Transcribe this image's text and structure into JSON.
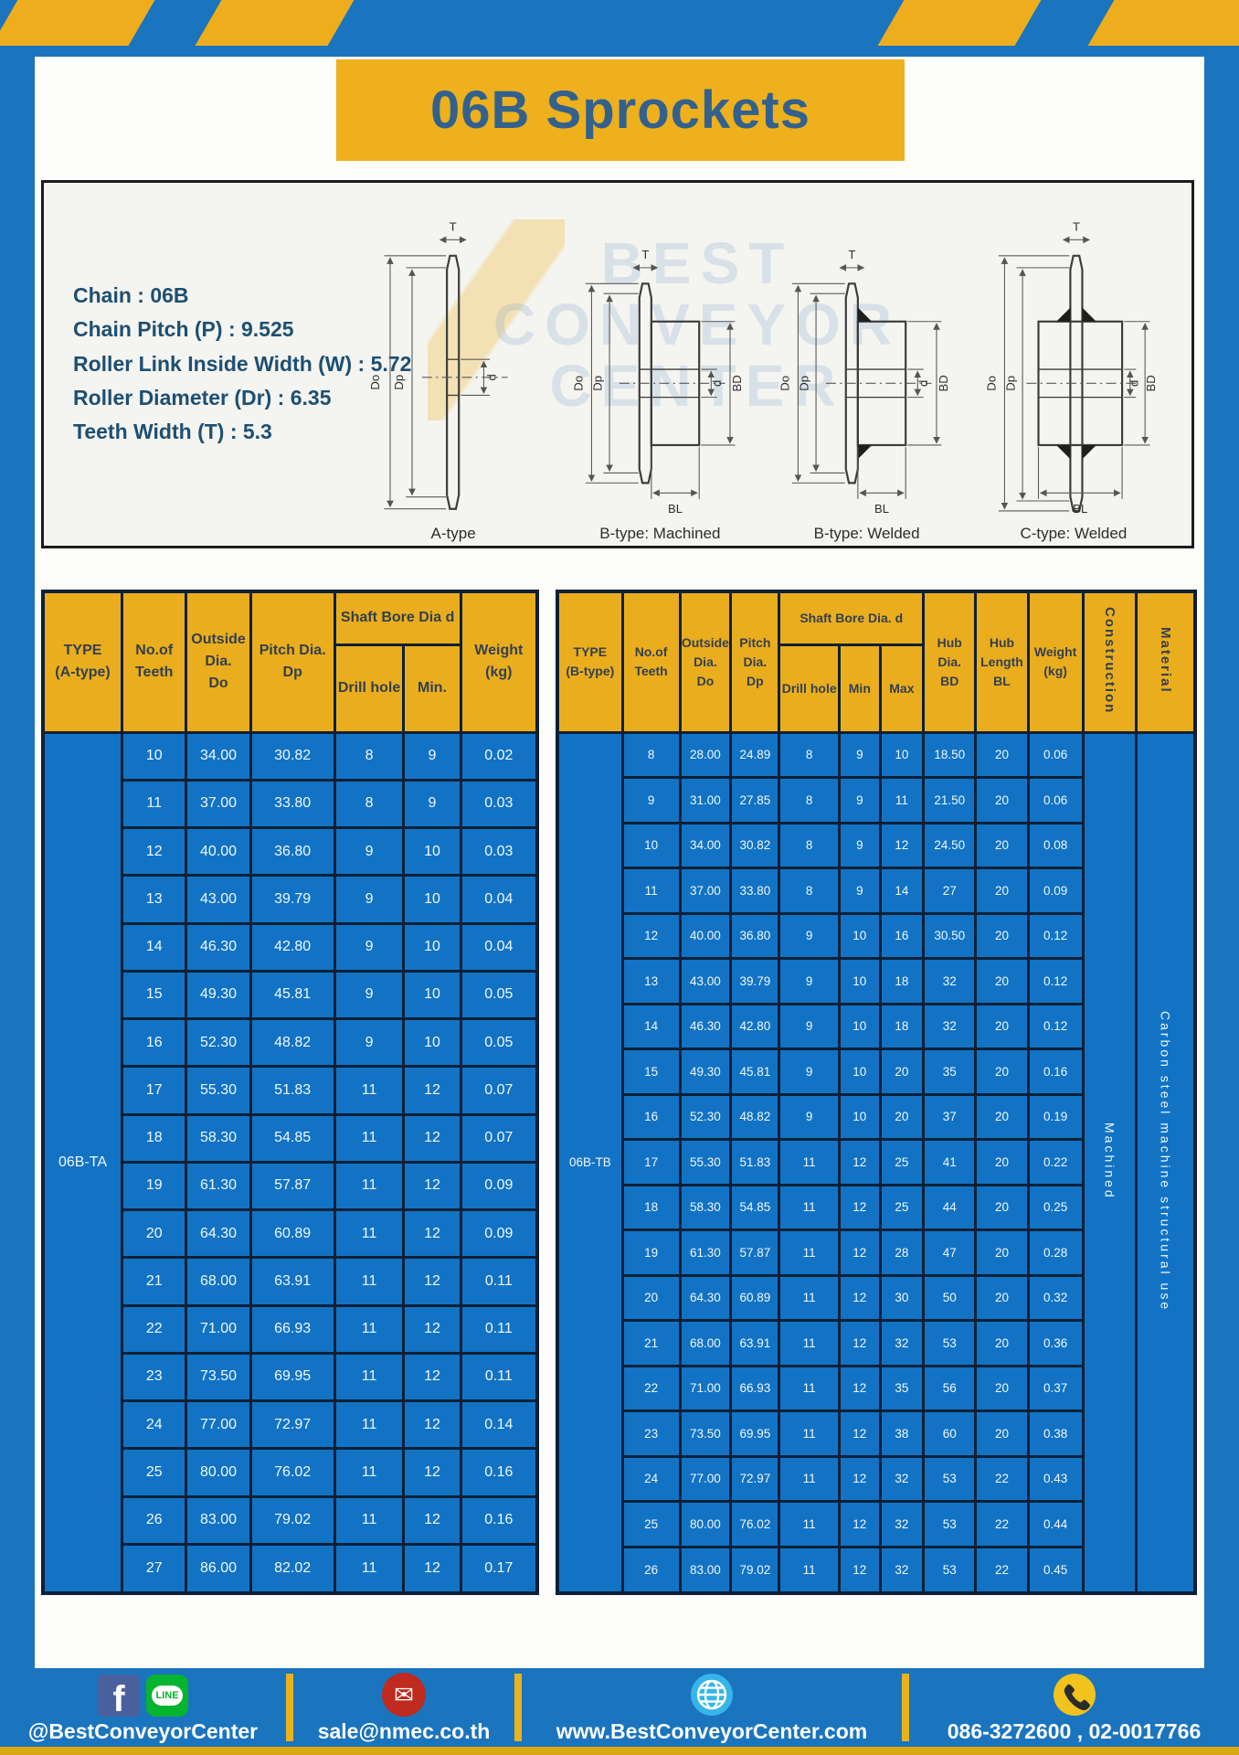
{
  "header": {
    "title": "06B Sprockets"
  },
  "specs": {
    "lines": [
      "Chain  : 06B",
      "Chain Pitch (P)  :  9.525",
      "Roller Link Inside Width (W)  :  5.72",
      "Roller Diameter (Dr)  : 6.35",
      "Teeth Width (T)  :  5.3"
    ]
  },
  "drawings": {
    "watermark": "BEST\nCONVEYOR\nCENTER",
    "dims": {
      "t": "T",
      "do": "Do",
      "dp": "Dp",
      "d": "d",
      "bd": "BD",
      "bl": "BL"
    },
    "figures": [
      {
        "label": "A-type"
      },
      {
        "label": "B-type: Machined"
      },
      {
        "label": "B-type: Welded"
      },
      {
        "label": "C-type: Welded"
      }
    ]
  },
  "table_a": {
    "type_label": "06B-TA",
    "headers": {
      "type": "TYPE\n(A-type)",
      "teeth": "No.of\nTeeth",
      "outside": "Outside\nDia.\nDo",
      "pitch": "Pitch Dia.\nDp",
      "bore_group": "Shaft Bore Dia d",
      "drill": "Drill hole",
      "min": "Min.",
      "weight": "Weight\n(kg)"
    },
    "rows": [
      [
        10,
        "34.00",
        "30.82",
        8,
        9,
        "0.02"
      ],
      [
        11,
        "37.00",
        "33.80",
        8,
        9,
        "0.03"
      ],
      [
        12,
        "40.00",
        "36.80",
        9,
        10,
        "0.03"
      ],
      [
        13,
        "43.00",
        "39.79",
        9,
        10,
        "0.04"
      ],
      [
        14,
        "46.30",
        "42.80",
        9,
        10,
        "0.04"
      ],
      [
        15,
        "49.30",
        "45.81",
        9,
        10,
        "0.05"
      ],
      [
        16,
        "52.30",
        "48.82",
        9,
        10,
        "0.05"
      ],
      [
        17,
        "55.30",
        "51.83",
        11,
        12,
        "0.07"
      ],
      [
        18,
        "58.30",
        "54.85",
        11,
        12,
        "0.07"
      ],
      [
        19,
        "61.30",
        "57.87",
        11,
        12,
        "0.09"
      ],
      [
        20,
        "64.30",
        "60.89",
        11,
        12,
        "0.09"
      ],
      [
        21,
        "68.00",
        "63.91",
        11,
        12,
        "0.11"
      ],
      [
        22,
        "71.00",
        "66.93",
        11,
        12,
        "0.11"
      ],
      [
        23,
        "73.50",
        "69.95",
        11,
        12,
        "0.11"
      ],
      [
        24,
        "77.00",
        "72.97",
        11,
        12,
        "0.14"
      ],
      [
        25,
        "80.00",
        "76.02",
        11,
        12,
        "0.16"
      ],
      [
        26,
        "83.00",
        "79.02",
        11,
        12,
        "0.16"
      ],
      [
        27,
        "86.00",
        "82.02",
        11,
        12,
        "0.17"
      ]
    ]
  },
  "table_b": {
    "type_label": "06B-TB",
    "construction_value": "Machined",
    "material_value": "Carbon steel machine structural use",
    "headers": {
      "type": "TYPE\n(B-type)",
      "teeth": "No.of\nTeeth",
      "outside": "Outside\nDia.\nDo",
      "pitch": "Pitch\nDia.\nDp",
      "bore_group": "Shaft Bore Dia. d",
      "drill": "Drill hole",
      "min": "Min",
      "max": "Max",
      "hub_dia": "Hub\nDia.\nBD",
      "hub_len": "Hub\nLength\nBL",
      "weight": "Weight\n(kg)",
      "construction": "Construction",
      "material": "Material"
    },
    "rows": [
      [
        8,
        "28.00",
        "24.89",
        8,
        9,
        10,
        "18.50",
        20,
        "0.06"
      ],
      [
        9,
        "31.00",
        "27.85",
        8,
        9,
        11,
        "21.50",
        20,
        "0.06"
      ],
      [
        10,
        "34.00",
        "30.82",
        8,
        9,
        12,
        "24.50",
        20,
        "0.08"
      ],
      [
        11,
        "37.00",
        "33.80",
        8,
        9,
        14,
        "27",
        20,
        "0.09"
      ],
      [
        12,
        "40.00",
        "36.80",
        9,
        10,
        16,
        "30.50",
        20,
        "0.12"
      ],
      [
        13,
        "43.00",
        "39.79",
        9,
        10,
        18,
        "32",
        20,
        "0.12"
      ],
      [
        14,
        "46.30",
        "42.80",
        9,
        10,
        18,
        "32",
        20,
        "0.12"
      ],
      [
        15,
        "49.30",
        "45.81",
        9,
        10,
        20,
        "35",
        20,
        "0.16"
      ],
      [
        16,
        "52.30",
        "48.82",
        9,
        10,
        20,
        "37",
        20,
        "0.19"
      ],
      [
        17,
        "55.30",
        "51.83",
        11,
        12,
        25,
        "41",
        20,
        "0.22"
      ],
      [
        18,
        "58.30",
        "54.85",
        11,
        12,
        25,
        "44",
        20,
        "0.25"
      ],
      [
        19,
        "61.30",
        "57.87",
        11,
        12,
        28,
        "47",
        20,
        "0.28"
      ],
      [
        20,
        "64.30",
        "60.89",
        11,
        12,
        30,
        "50",
        20,
        "0.32"
      ],
      [
        21,
        "68.00",
        "63.91",
        11,
        12,
        32,
        "53",
        20,
        "0.36"
      ],
      [
        22,
        "71.00",
        "66.93",
        11,
        12,
        35,
        "56",
        20,
        "0.37"
      ],
      [
        23,
        "73.50",
        "69.95",
        11,
        12,
        38,
        "60",
        20,
        "0.38"
      ],
      [
        24,
        "77.00",
        "72.97",
        11,
        12,
        32,
        "53",
        22,
        "0.43"
      ],
      [
        25,
        "80.00",
        "76.02",
        11,
        12,
        32,
        "53",
        22,
        "0.44"
      ],
      [
        26,
        "83.00",
        "79.02",
        11,
        12,
        32,
        "53",
        22,
        "0.45"
      ]
    ]
  },
  "footer": {
    "line_badge": "LINE",
    "facebook_glyph": "f",
    "email_glyph": "✉",
    "social": "@BestConveyorCenter",
    "email": "sale@nmec.co.th",
    "website": "www.BestConveyorCenter.com",
    "phone": "086-3272600 , 02-0017766"
  },
  "colors": {
    "frame_blue": "#1B74BE",
    "table_blue": "#1273C5",
    "accent_yellow": "#EEB01C",
    "border_navy": "#0E2036"
  }
}
